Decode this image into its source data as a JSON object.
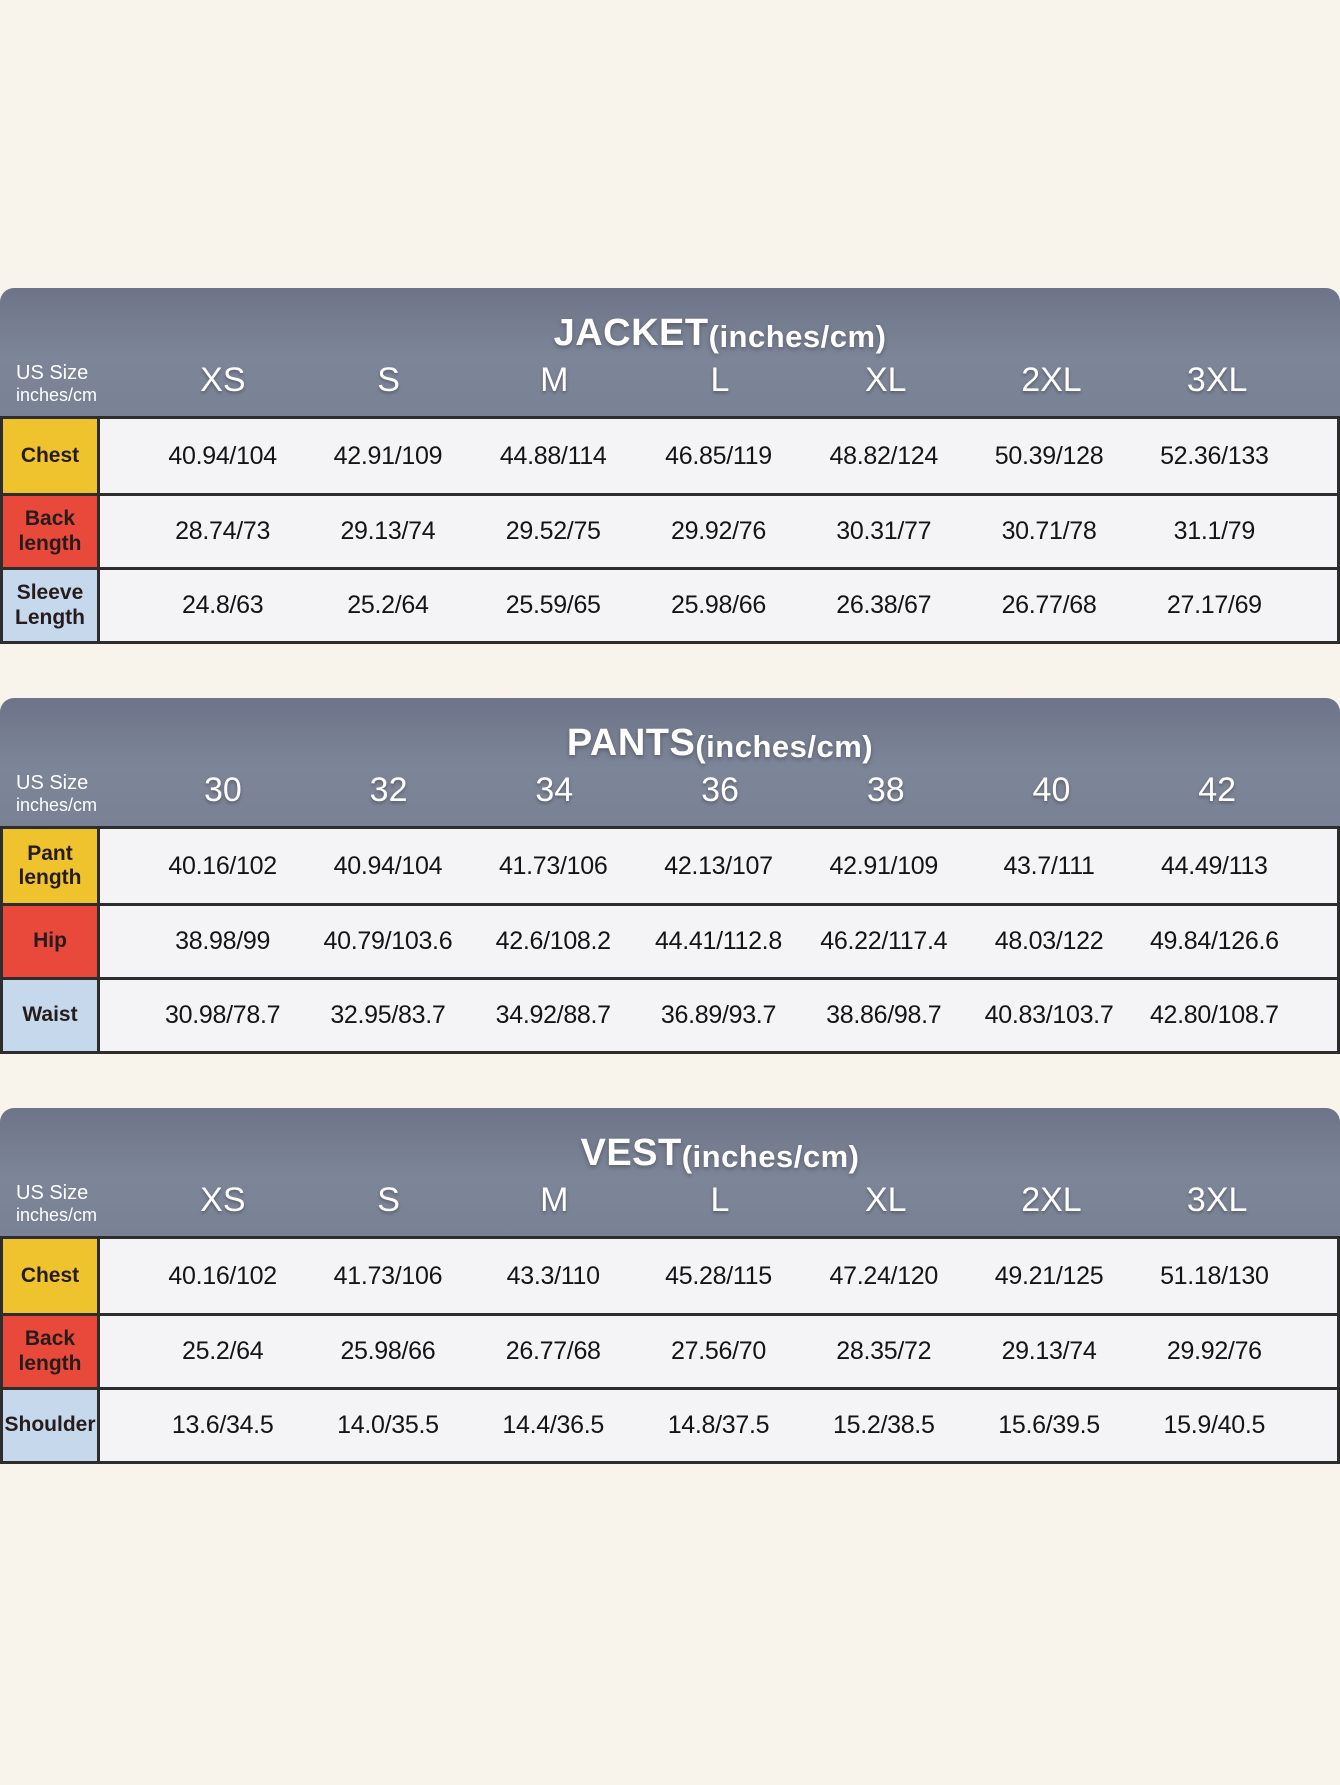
{
  "page_background": "#f8f4ec",
  "theme": {
    "header_bg": "#78809a",
    "header_text": "#ffffff",
    "row_bg": "#f4f4f6",
    "border_dark": "#2d2d2d",
    "label_yellow": "#eec32d",
    "label_red": "#e8493b",
    "label_blue": "#c6d8ec",
    "value_text": "#141414"
  },
  "corner_label": {
    "line1": "US Size",
    "line2": "inches/cm"
  },
  "chart_data": [
    {
      "type": "table",
      "title": "JACKET",
      "title_suffix": "(inches/cm)",
      "corner_label": "US Size inches/cm",
      "sizes": [
        "XS",
        "S",
        "M",
        "L",
        "XL",
        "2XL",
        "3XL"
      ],
      "rows": [
        {
          "label": "Chest",
          "color": "#eec32d",
          "values": [
            "40.94/104",
            "42.91/109",
            "44.88/114",
            "46.85/119",
            "48.82/124",
            "50.39/128",
            "52.36/133"
          ]
        },
        {
          "label": "Back length",
          "color": "#e8493b",
          "values": [
            "28.74/73",
            "29.13/74",
            "29.52/75",
            "29.92/76",
            "30.31/77",
            "30.71/78",
            "31.1/79"
          ]
        },
        {
          "label": "Sleeve Length",
          "color": "#c6d8ec",
          "values": [
            "24.8/63",
            "25.2/64",
            "25.59/65",
            "25.98/66",
            "26.38/67",
            "26.77/68",
            "27.17/69"
          ]
        }
      ]
    },
    {
      "type": "table",
      "title": "PANTS",
      "title_suffix": "(inches/cm)",
      "corner_label": "US Size inches/cm",
      "sizes": [
        "30",
        "32",
        "34",
        "36",
        "38",
        "40",
        "42"
      ],
      "rows": [
        {
          "label": "Pant length",
          "color": "#eec32d",
          "values": [
            "40.16/102",
            "40.94/104",
            "41.73/106",
            "42.13/107",
            "42.91/109",
            "43.7/111",
            "44.49/113"
          ]
        },
        {
          "label": "Hip",
          "color": "#e8493b",
          "values": [
            "38.98/99",
            "40.79/103.6",
            "42.6/108.2",
            "44.41/112.8",
            "46.22/117.4",
            "48.03/122",
            "49.84/126.6"
          ]
        },
        {
          "label": "Waist",
          "color": "#c6d8ec",
          "values": [
            "30.98/78.7",
            "32.95/83.7",
            "34.92/88.7",
            "36.89/93.7",
            "38.86/98.7",
            "40.83/103.7",
            "42.80/108.7"
          ]
        }
      ]
    },
    {
      "type": "table",
      "title": "VEST",
      "title_suffix": "(inches/cm)",
      "corner_label": "US Size inches/cm",
      "sizes": [
        "XS",
        "S",
        "M",
        "L",
        "XL",
        "2XL",
        "3XL"
      ],
      "rows": [
        {
          "label": "Chest",
          "color": "#eec32d",
          "values": [
            "40.16/102",
            "41.73/106",
            "43.3/110",
            "45.28/115",
            "47.24/120",
            "49.21/125",
            "51.18/130"
          ]
        },
        {
          "label": "Back length",
          "color": "#e8493b",
          "values": [
            "25.2/64",
            "25.98/66",
            "26.77/68",
            "27.56/70",
            "28.35/72",
            "29.13/74",
            "29.92/76"
          ]
        },
        {
          "label": "Shoulder",
          "color": "#c6d8ec",
          "values": [
            "13.6/34.5",
            "14.0/35.5",
            "14.4/36.5",
            "14.8/37.5",
            "15.2/38.5",
            "15.6/39.5",
            "15.9/40.5"
          ]
        }
      ]
    }
  ]
}
